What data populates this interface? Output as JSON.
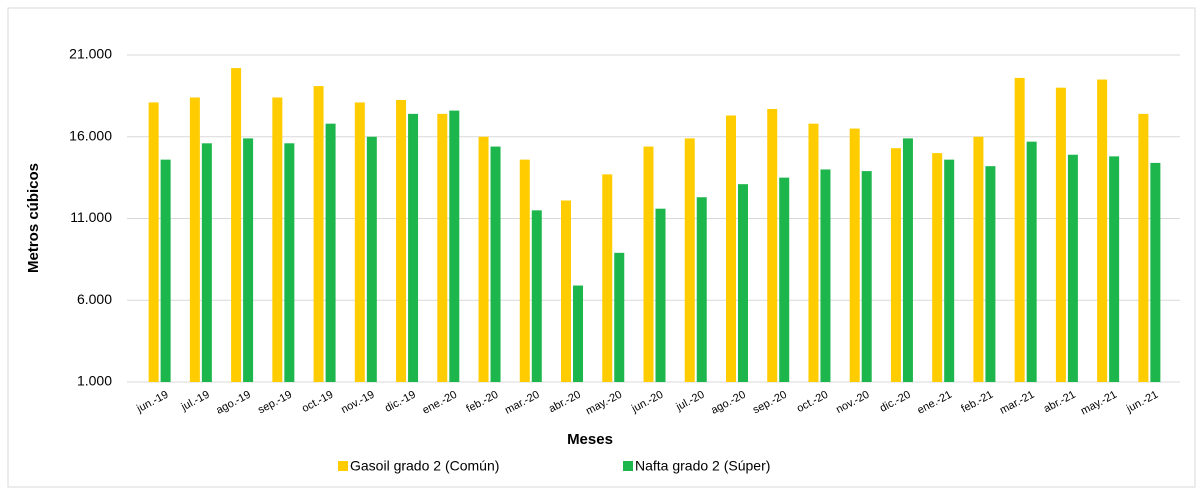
{
  "chart_data": {
    "type": "bar",
    "x_label": "Meses",
    "y_label": "Metros cúbicos",
    "categories": [
      "jun.-19",
      "jul.-19",
      "ago.-19",
      "sep.-19",
      "oct.-19",
      "nov.-19",
      "dic.-19",
      "ene.-20",
      "feb.-20",
      "mar.-20",
      "abr.-20",
      "may.-20",
      "jun.-20",
      "jul.-20",
      "ago.-20",
      "sep.-20",
      "oct.-20",
      "nov.-20",
      "dic.-20",
      "ene.-21",
      "feb.-21",
      "mar.-21",
      "abr.-21",
      "may.-21",
      "jun.-21"
    ],
    "series": [
      {
        "name": "Gasoil grado 2 (Común)",
        "color": "#ffcc00",
        "values": [
          18100,
          18400,
          20200,
          18400,
          19100,
          18100,
          18250,
          17400,
          16000,
          14600,
          12100,
          13700,
          15400,
          15900,
          17300,
          17700,
          16800,
          16500,
          15300,
          15000,
          16000,
          19600,
          19000,
          19500,
          17400
        ]
      },
      {
        "name": "Nafta grado 2 (Súper)",
        "color": "#1db64c",
        "values": [
          14600,
          15600,
          15900,
          15600,
          16800,
          16000,
          17400,
          17600,
          15400,
          11500,
          6900,
          8900,
          11600,
          12300,
          13100,
          13500,
          14000,
          13900,
          15900,
          14600,
          14200,
          15700,
          14900,
          14800,
          14400
        ]
      }
    ],
    "ylim": [
      1000,
      21000
    ],
    "yticks": [
      {
        "value": 1000,
        "label": "1.000"
      },
      {
        "value": 6000,
        "label": "6.000"
      },
      {
        "value": 11000,
        "label": "11.000"
      },
      {
        "value": 16000,
        "label": "16.000"
      },
      {
        "value": 21000,
        "label": "21.000"
      }
    ],
    "grid": true
  }
}
